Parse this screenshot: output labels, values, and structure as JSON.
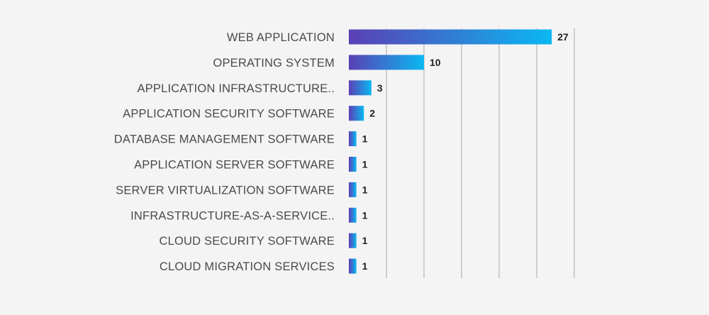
{
  "chart_data": {
    "type": "bar",
    "orientation": "horizontal",
    "categories": [
      "WEB APPLICATION",
      "OPERATING SYSTEM",
      "APPLICATION INFRASTRUCTURE..",
      "APPLICATION SECURITY SOFTWARE",
      "DATABASE MANAGEMENT SOFTWARE",
      "APPLICATION SERVER SOFTWARE",
      "SERVER VIRTUALIZATION SOFTWARE",
      "INFRASTRUCTURE-AS-A-SERVICE..",
      "CLOUD SECURITY SOFTWARE",
      "CLOUD MIGRATION SERVICES"
    ],
    "values": [
      27,
      10,
      3,
      2,
      1,
      1,
      1,
      1,
      1,
      1
    ],
    "data_labels": [
      "27",
      "10",
      "3",
      "2",
      "1",
      "1",
      "1",
      "1",
      "1",
      "1"
    ],
    "title": "",
    "xlabel": "",
    "ylabel": "",
    "xlim": [
      0,
      30
    ],
    "grid": true,
    "legend": "none",
    "colors": {
      "bar_gradient_start": "#5b3fb5",
      "bar_gradient_end": "#0ab8f2",
      "grid": "#a8a8a8",
      "background": "#f4f4f4",
      "category_text": "#4a4a4a",
      "value_text": "#222222"
    }
  }
}
